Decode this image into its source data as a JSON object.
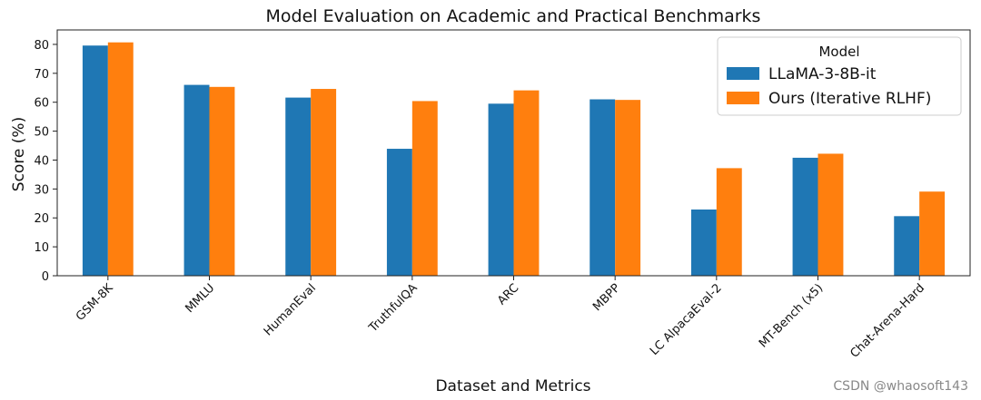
{
  "chart_data": {
    "type": "bar",
    "title": "Model Evaluation on Academic and Practical Benchmarks",
    "xlabel": "Dataset and Metrics",
    "ylabel": "Score (%)",
    "ylim": [
      0,
      85
    ],
    "yticks": [
      0,
      10,
      20,
      30,
      40,
      50,
      60,
      70,
      80
    ],
    "grid": false,
    "legend": {
      "title": "Model",
      "placement": "top-right"
    },
    "categories": [
      "GSM-8K",
      "MMLU",
      "HumanEval",
      "TruthfulQA",
      "ARC",
      "MBPP",
      "LC AlpacaEval-2",
      "MT-Bench (x5)",
      "Chat-Arena-Hard"
    ],
    "series": [
      {
        "name": "LLaMA-3-8B-it",
        "color": "#1f77b4",
        "values": [
          79.6,
          66.0,
          61.6,
          43.9,
          59.5,
          61.0,
          22.9,
          40.8,
          20.6
        ]
      },
      {
        "name": "Ours (Iterative RLHF)",
        "color": "#ff7f0e",
        "values": [
          80.7,
          65.3,
          64.6,
          60.4,
          64.1,
          60.8,
          37.2,
          42.2,
          29.1
        ]
      }
    ]
  },
  "watermark": "CSDN @whaosoft143"
}
